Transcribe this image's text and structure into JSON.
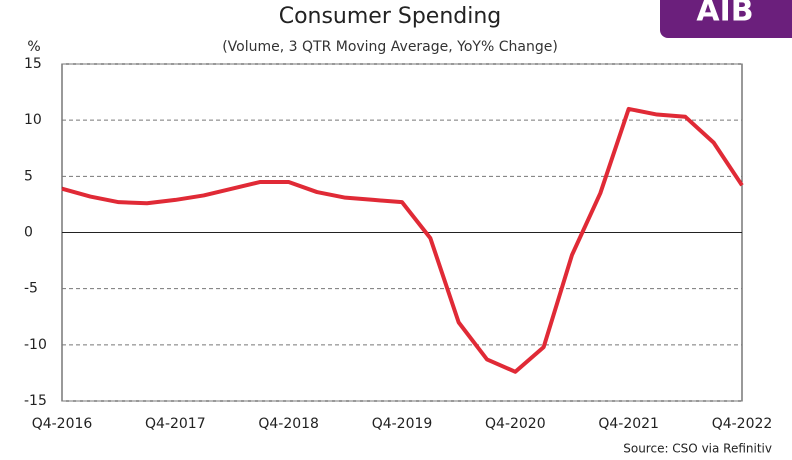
{
  "chart_data": {
    "type": "line",
    "title": "Consumer Spending",
    "subtitle": "(Volume, 3 QTR Moving Average, YoY% Change)",
    "y_axis_label": "%",
    "source": "Source: CSO via Refinitiv",
    "logo": "AIB",
    "categories": [
      "Q4-2016",
      null,
      null,
      null,
      "Q4-2017",
      null,
      null,
      null,
      "Q4-2018",
      null,
      null,
      null,
      "Q4-2019",
      null,
      null,
      null,
      "Q4-2020",
      null,
      null,
      null,
      "Q4-2021",
      null,
      null,
      null,
      "Q4-2022"
    ],
    "series": [
      {
        "name": "Consumer Spending",
        "color": "#e02a36",
        "values": [
          3.9,
          3.2,
          2.7,
          2.6,
          2.9,
          3.3,
          3.9,
          4.5,
          4.5,
          3.6,
          3.1,
          2.9,
          2.7,
          -0.5,
          -8.0,
          -11.3,
          -12.4,
          -10.2,
          -2.0,
          3.5,
          11.0,
          10.5,
          10.3,
          8.0,
          4.2
        ]
      }
    ],
    "ylim": [
      -15,
      15
    ],
    "yticks": [
      -15,
      -10,
      -5,
      0,
      5,
      10,
      15
    ],
    "grid": true
  }
}
